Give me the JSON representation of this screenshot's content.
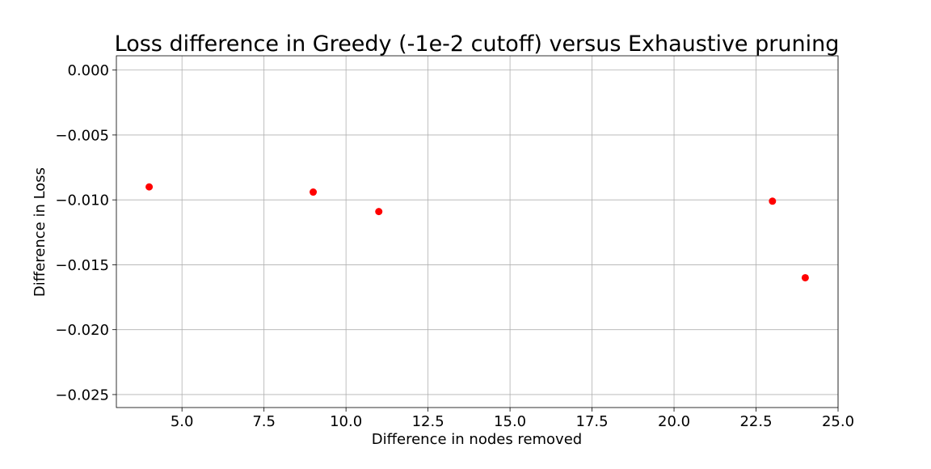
{
  "chart_data": {
    "type": "scatter",
    "title": "Loss difference in Greedy (-1e-2 cutoff) versus Exhaustive pruning",
    "xlabel": "Difference in nodes removed",
    "ylabel": "Difference in Loss",
    "xlim": [
      3.0,
      25.0
    ],
    "ylim": [
      -0.026,
      0.0011
    ],
    "grid": true,
    "x_ticks": [
      5.0,
      7.5,
      10.0,
      12.5,
      15.0,
      17.5,
      20.0,
      22.5,
      25.0
    ],
    "x_tick_labels": [
      "5.0",
      "7.5",
      "10.0",
      "12.5",
      "15.0",
      "17.5",
      "20.0",
      "22.5",
      "25.0"
    ],
    "y_ticks": [
      0.0,
      -0.005,
      -0.01,
      -0.015,
      -0.02,
      -0.025
    ],
    "y_tick_labels": [
      "0.000",
      "−0.005",
      "−0.010",
      "−0.015",
      "−0.020",
      "−0.025"
    ],
    "series": [
      {
        "color": "#ff0000",
        "points": [
          {
            "x": 4,
            "y": -0.009
          },
          {
            "x": 9,
            "y": -0.0094
          },
          {
            "x": 11,
            "y": -0.0109
          },
          {
            "x": 23,
            "y": -0.0101
          },
          {
            "x": 24,
            "y": -0.016
          }
        ]
      }
    ]
  }
}
